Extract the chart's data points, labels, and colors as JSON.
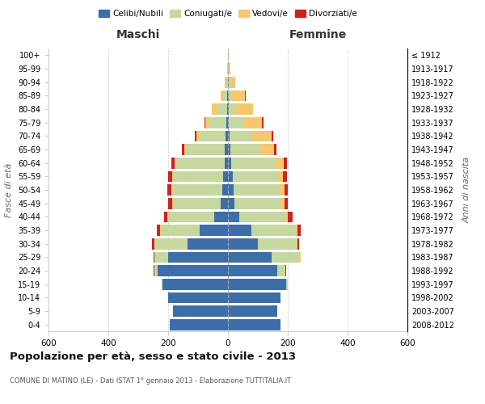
{
  "age_groups": [
    "0-4",
    "5-9",
    "10-14",
    "15-19",
    "20-24",
    "25-29",
    "30-34",
    "35-39",
    "40-44",
    "45-49",
    "50-54",
    "55-59",
    "60-64",
    "65-69",
    "70-74",
    "75-79",
    "80-84",
    "85-89",
    "90-94",
    "95-99",
    "100+"
  ],
  "birth_years": [
    "2008-2012",
    "2003-2007",
    "1998-2002",
    "1993-1997",
    "1988-1992",
    "1983-1987",
    "1978-1982",
    "1973-1977",
    "1968-1972",
    "1963-1967",
    "1958-1962",
    "1953-1957",
    "1948-1952",
    "1943-1947",
    "1938-1942",
    "1933-1937",
    "1928-1932",
    "1923-1927",
    "1918-1922",
    "1913-1917",
    "≤ 1912"
  ],
  "males": {
    "celibi": [
      195,
      185,
      200,
      220,
      235,
      200,
      135,
      95,
      45,
      25,
      18,
      15,
      12,
      10,
      8,
      5,
      3,
      2,
      0,
      0,
      0
    ],
    "coniugati": [
      0,
      0,
      0,
      2,
      10,
      45,
      110,
      130,
      155,
      160,
      170,
      170,
      165,
      130,
      90,
      60,
      30,
      12,
      5,
      2,
      0
    ],
    "vedovi": [
      0,
      0,
      0,
      0,
      2,
      2,
      2,
      2,
      2,
      2,
      2,
      2,
      2,
      5,
      8,
      12,
      20,
      10,
      5,
      2,
      0
    ],
    "divorziati": [
      0,
      0,
      0,
      0,
      2,
      2,
      8,
      12,
      12,
      12,
      12,
      12,
      10,
      8,
      5,
      2,
      2,
      0,
      0,
      0,
      0
    ]
  },
  "females": {
    "nubili": [
      175,
      165,
      175,
      195,
      165,
      145,
      100,
      78,
      38,
      22,
      18,
      15,
      12,
      8,
      6,
      4,
      3,
      3,
      2,
      0,
      0
    ],
    "coniugate": [
      0,
      0,
      0,
      5,
      25,
      95,
      130,
      150,
      155,
      155,
      155,
      150,
      145,
      100,
      75,
      50,
      20,
      10,
      5,
      2,
      0
    ],
    "vedove": [
      0,
      0,
      0,
      0,
      2,
      2,
      2,
      5,
      8,
      12,
      15,
      20,
      30,
      45,
      65,
      60,
      60,
      45,
      18,
      5,
      2
    ],
    "divorziate": [
      0,
      0,
      0,
      0,
      2,
      2,
      5,
      10,
      15,
      12,
      12,
      12,
      10,
      8,
      5,
      5,
      2,
      2,
      0,
      0,
      0
    ]
  },
  "colors": {
    "celibi": "#3d6ea8",
    "coniugati": "#c5d8a0",
    "vedovi": "#f5c86e",
    "divorziati": "#cc2222"
  },
  "xlim": 600,
  "title": "Popolazione per età, sesso e stato civile - 2013",
  "subtitle": "COMUNE DI MATINO (LE) - Dati ISTAT 1° gennaio 2013 - Elaborazione TUTTITALIA.IT",
  "ylabel_left": "Fasce di età",
  "ylabel_right": "Anni di nascita",
  "xlabel_left": "Maschi",
  "xlabel_right": "Femmine",
  "legend_labels": [
    "Celibi/Nubili",
    "Coniugati/e",
    "Vedovi/e",
    "Divorziati/e"
  ],
  "background_color": "#ffffff",
  "grid_color": "#cccccc"
}
